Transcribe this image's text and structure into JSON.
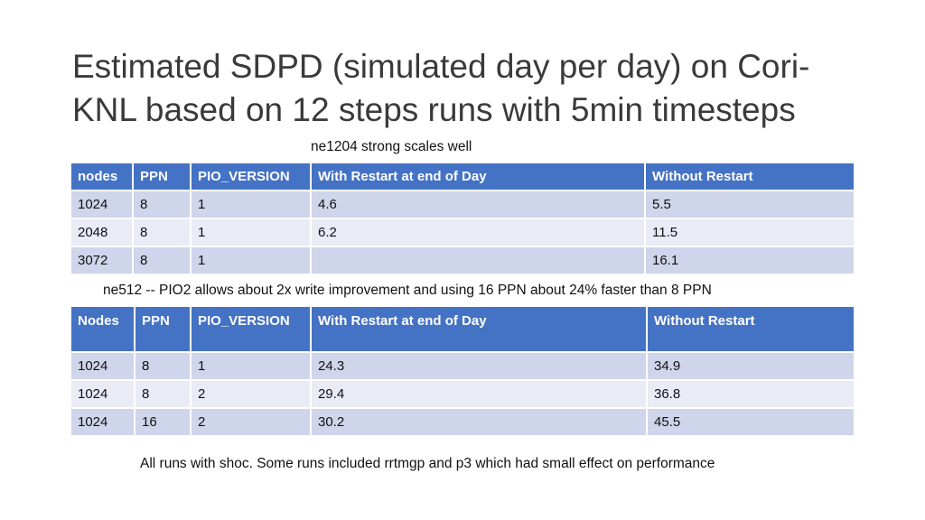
{
  "title": "Estimated SDPD (simulated day per day) on Cori-KNL based on 12 steps runs with 5min timesteps",
  "section1": {
    "caption": "ne1204 strong scales well",
    "headers": [
      "nodes",
      "PPN",
      "PIO_VERSION",
      "With Restart at end of Day",
      "Without Restart"
    ],
    "rows": [
      [
        "1024",
        "8",
        "1",
        "4.6",
        "5.5"
      ],
      [
        "2048",
        "8",
        "1",
        "6.2",
        "11.5"
      ],
      [
        "3072",
        "8",
        "1",
        "",
        "16.1"
      ]
    ]
  },
  "section2": {
    "caption": "ne512 -- PIO2 allows about 2x write improvement and using 16 PPN about 24% faster than 8 PPN",
    "headers": [
      "Nodes",
      "PPN",
      "PIO_VERSION",
      "With Restart at end of Day",
      "Without Restart"
    ],
    "rows": [
      [
        "1024",
        "8",
        "1",
        "24.3",
        "34.9"
      ],
      [
        "1024",
        "8",
        "2",
        "29.4",
        "36.8"
      ],
      [
        "1024",
        "16",
        "2",
        "30.2",
        "45.5"
      ]
    ]
  },
  "footnote": "All runs with shoc. Some runs included rrtmgp and p3 which had small effect on performance",
  "colors": {
    "header_bg": "#4472c4",
    "row_odd_bg": "#cfd5ea",
    "row_even_bg": "#e9ebf5"
  }
}
